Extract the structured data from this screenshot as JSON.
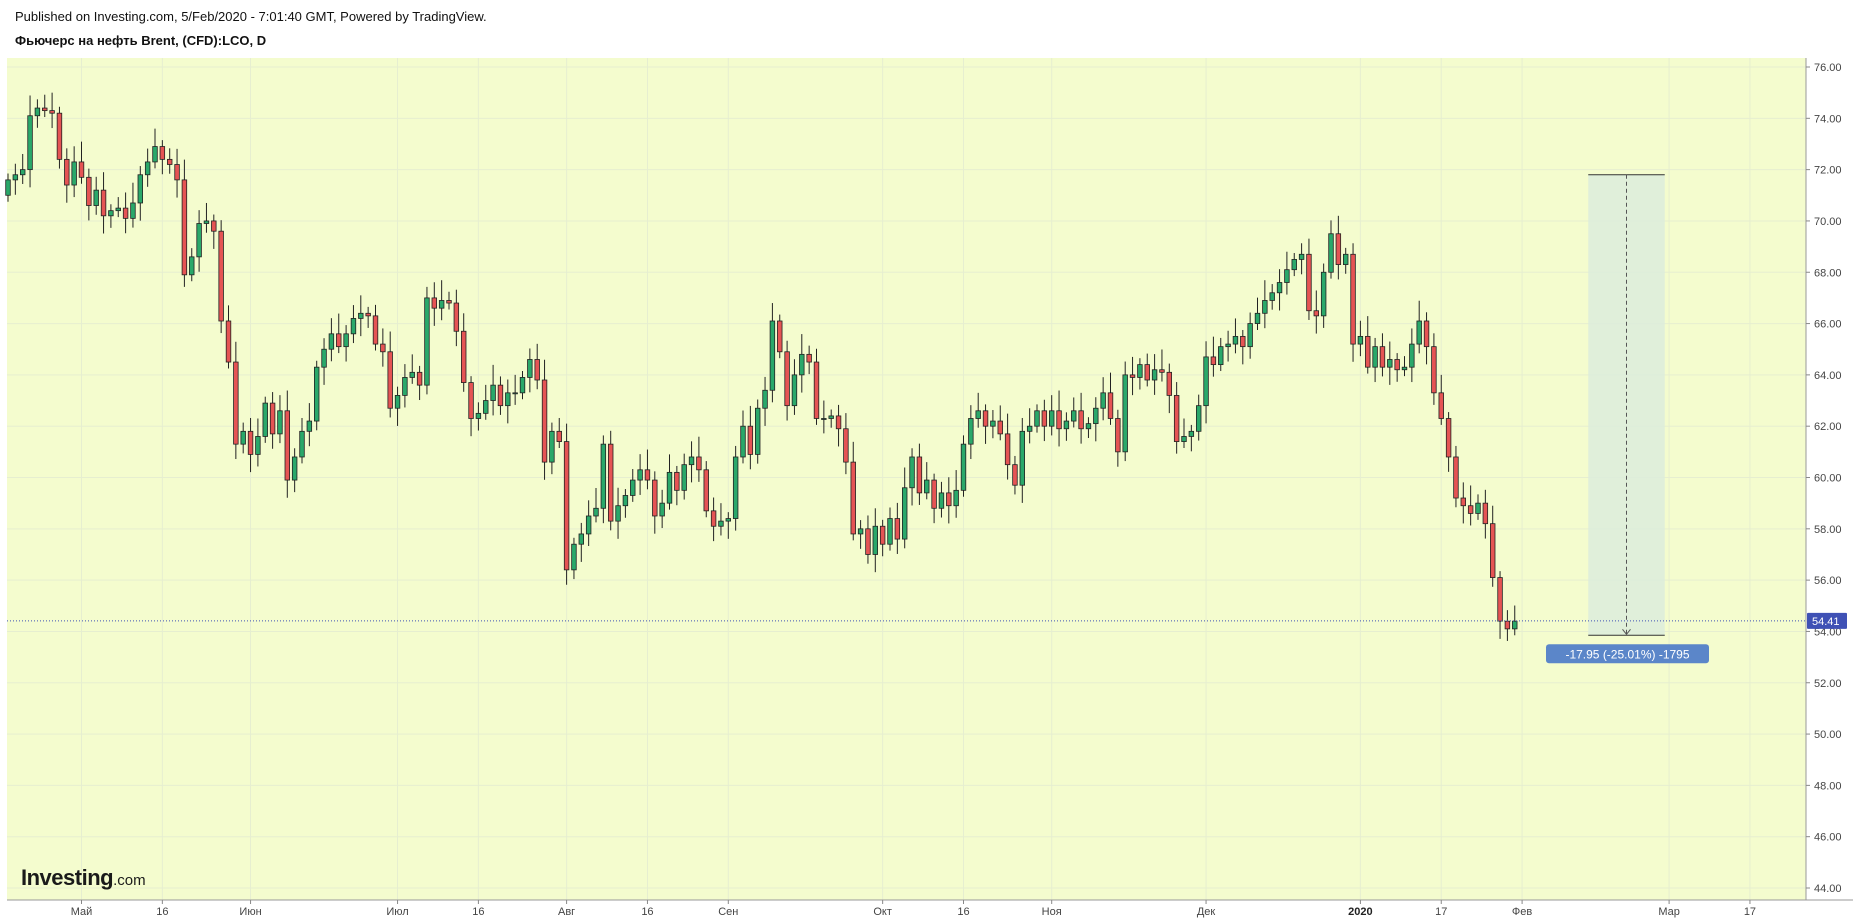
{
  "header": {
    "published": "Published on Investing.com, 5/Feb/2020 - 7:01:40 GMT, Powered by TradingView.",
    "symbol": "Фьючерс на нефть Brent, (CFD):LCO, D"
  },
  "logo": {
    "main": "Investing",
    "suffix": ".com"
  },
  "colors": {
    "background": "#f4fcce",
    "up": "#2aa86a",
    "down": "#e55454",
    "price_line": "#3f51b5",
    "measure_fill": "#dcecdc",
    "measure_label": "#5b86c9"
  },
  "chart_data": {
    "type": "candlestick",
    "instrument": "LCO",
    "timeframe": "D",
    "ylim": [
      44,
      76
    ],
    "y_ticks": [
      "76.00",
      "74.00",
      "72.00",
      "70.00",
      "68.00",
      "66.00",
      "64.00",
      "62.00",
      "60.00",
      "58.00",
      "56.00",
      "54.00",
      "52.00",
      "50.00",
      "48.00",
      "46.00",
      "44.00"
    ],
    "x_ticks": [
      {
        "label": "Май",
        "bold": false,
        "index": 10
      },
      {
        "label": "16",
        "bold": false,
        "index": 21
      },
      {
        "label": "Июн",
        "bold": false,
        "index": 33
      },
      {
        "label": "Июл",
        "bold": false,
        "index": 53
      },
      {
        "label": "16",
        "bold": false,
        "index": 64
      },
      {
        "label": "Авг",
        "bold": false,
        "index": 76
      },
      {
        "label": "16",
        "bold": false,
        "index": 87
      },
      {
        "label": "Сен",
        "bold": false,
        "index": 98
      },
      {
        "label": "Окт",
        "bold": false,
        "index": 119
      },
      {
        "label": "16",
        "bold": false,
        "index": 130
      },
      {
        "label": "Ноя",
        "bold": false,
        "index": 142
      },
      {
        "label": "Дек",
        "bold": false,
        "index": 163
      },
      {
        "label": "2020",
        "bold": true,
        "index": 184
      },
      {
        "label": "17",
        "bold": false,
        "index": 195
      },
      {
        "label": "Фев",
        "bold": false,
        "index": 206
      },
      {
        "label": "Мар",
        "bold": false,
        "index": 226
      },
      {
        "label": "17",
        "bold": false,
        "index": 237
      }
    ],
    "last_price": "54.41",
    "last_price_value": 54.41,
    "measure": {
      "label": "-17.95 (-25.01%) -1795",
      "from_value": 71.8,
      "to_value": 53.85,
      "from_index": 215,
      "to_index": 225
    },
    "closes": [
      71.6,
      71.8,
      72.0,
      74.1,
      74.4,
      74.3,
      74.2,
      72.4,
      71.4,
      72.3,
      71.7,
      70.6,
      71.2,
      70.2,
      70.4,
      70.5,
      70.1,
      70.7,
      71.8,
      72.3,
      72.9,
      72.4,
      72.2,
      71.6,
      67.9,
      68.6,
      69.9,
      70.0,
      69.6,
      66.1,
      64.5,
      61.3,
      61.8,
      60.9,
      61.6,
      62.9,
      61.7,
      62.6,
      59.9,
      60.8,
      61.8,
      62.2,
      64.3,
      65.0,
      65.6,
      65.1,
      65.6,
      66.2,
      66.4,
      66.3,
      65.2,
      64.9,
      62.7,
      63.2,
      63.9,
      64.1,
      63.6,
      67.0,
      66.6,
      66.9,
      66.8,
      65.7,
      63.7,
      62.3,
      62.5,
      63.0,
      63.6,
      62.8,
      63.3,
      63.3,
      63.9,
      64.6,
      63.8,
      60.6,
      61.8,
      61.4,
      56.4,
      57.4,
      57.8,
      58.5,
      58.8,
      61.3,
      58.3,
      58.9,
      59.3,
      59.9,
      60.3,
      59.9,
      58.5,
      59.0,
      60.2,
      59.5,
      60.5,
      60.8,
      60.3,
      58.7,
      58.1,
      58.3,
      58.4,
      60.8,
      62.0,
      60.9,
      62.7,
      63.4,
      66.1,
      64.9,
      62.8,
      64.0,
      64.8,
      64.5,
      62.3,
      62.3,
      62.4,
      61.9,
      60.6,
      57.8,
      58.0,
      57.0,
      58.1,
      57.4,
      58.4,
      57.6,
      59.6,
      60.8,
      59.4,
      59.9,
      58.8,
      59.4,
      58.9,
      59.5,
      61.3,
      62.3,
      62.6,
      62.0,
      62.2,
      61.7,
      60.5,
      59.7,
      61.8,
      62.0,
      62.6,
      62.0,
      62.6,
      61.9,
      62.2,
      62.6,
      61.9,
      62.1,
      62.7,
      63.3,
      62.3,
      61.0,
      64.0,
      63.9,
      64.4,
      63.8,
      64.2,
      64.1,
      63.2,
      61.4,
      61.6,
      61.8,
      62.8,
      64.7,
      64.4,
      65.1,
      65.2,
      65.5,
      65.1,
      66.0,
      66.4,
      66.9,
      67.2,
      67.6,
      68.1,
      68.5,
      68.7,
      66.5,
      66.3,
      68.0,
      69.5,
      68.3,
      68.7,
      65.2,
      65.5,
      64.3,
      65.1,
      64.3,
      64.6,
      64.2,
      64.3,
      65.2,
      66.1,
      65.1,
      63.3,
      62.3,
      60.8,
      59.2,
      58.9,
      58.6,
      59.0,
      58.2,
      56.1,
      54.4,
      54.1,
      54.4
    ],
    "series": [
      {
        "name": "LCO",
        "values": "see closes"
      }
    ]
  }
}
